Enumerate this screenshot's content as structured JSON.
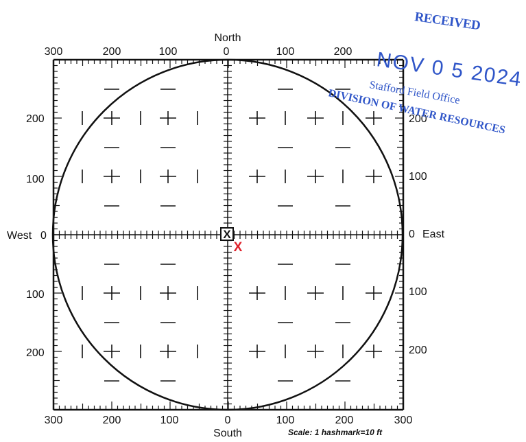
{
  "grid": {
    "north_label": "North",
    "south_label": "South",
    "west_label": "West",
    "east_label": "East",
    "top_ticks": [
      "300",
      "200",
      "100",
      "0",
      "100",
      "200"
    ],
    "bottom_ticks": [
      "300",
      "200",
      "100",
      "0",
      "100",
      "200",
      "300"
    ],
    "left_ticks": [
      "200",
      "100",
      "0",
      "100",
      "200"
    ],
    "right_ticks": [
      "200",
      "100",
      "0",
      "100",
      "200"
    ],
    "scale_note": "Scale: 1 hashmark=10 ft",
    "markers": [
      {
        "symbol": "X",
        "color": "#111111"
      },
      {
        "symbol": "X",
        "color": "#e0202a"
      }
    ]
  },
  "stamp": {
    "received": "RECEIVED",
    "date": "NOV 0 5 2024",
    "office": "Stafford Field Office",
    "division": "DIVISION OF WATER RESOURCES",
    "color": "#2f55c8"
  }
}
